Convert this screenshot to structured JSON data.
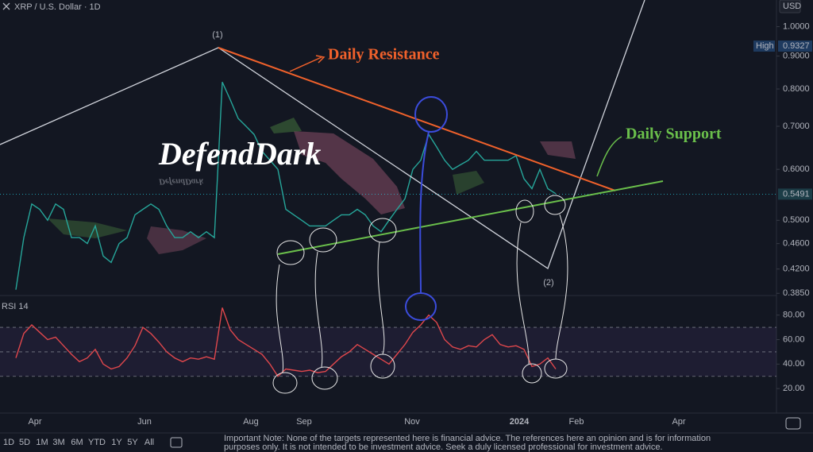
{
  "title": "XRP / U.S. Dollar · 1D",
  "currency": "USD",
  "time_axis": [
    "Apr",
    "Jun",
    "Aug",
    "Sep",
    "Nov",
    "2024",
    "Feb",
    "Apr"
  ],
  "annotations": [
    "(1)",
    "(2)",
    "Daily Resistance",
    "Daily Support",
    "DefendDark"
  ],
  "toolbar": [
    "1D",
    "5D",
    "1M",
    "3M",
    "6M",
    "YTD",
    "1Y",
    "5Y",
    "All"
  ],
  "note": [
    "Important Note: None of the targets represented here is financial advice. The references here an opinion and is for information",
    "purposes only. It is not intended to be investment advice. Seek a duly licensed professional for investment advice."
  ],
  "chart_data": [
    {
      "type": "line",
      "log_scale": true,
      "color": "#26a69a",
      "values": [
        0.39,
        0.47,
        0.53,
        0.52,
        0.5,
        0.53,
        0.52,
        0.47,
        0.47,
        0.46,
        0.49,
        0.44,
        0.43,
        0.46,
        0.47,
        0.51,
        0.52,
        0.53,
        0.52,
        0.49,
        0.47,
        0.47,
        0.48,
        0.47,
        0.48,
        0.47,
        0.82,
        0.77,
        0.72,
        0.7,
        0.68,
        0.64,
        0.62,
        0.6,
        0.52,
        0.51,
        0.5,
        0.49,
        0.49,
        0.49,
        0.5,
        0.51,
        0.51,
        0.52,
        0.51,
        0.49,
        0.48,
        0.5,
        0.52,
        0.54,
        0.6,
        0.62,
        0.68,
        0.65,
        0.62,
        0.6,
        0.61,
        0.62,
        0.64,
        0.62,
        0.62,
        0.62,
        0.62,
        0.63,
        0.58,
        0.56,
        0.6,
        0.56,
        0.55
      ],
      "ylim": [
        0.382,
        1.1
      ],
      "yticks": [
        {
          "value": 1.0,
          "label": "1.0000"
        },
        {
          "value": 0.9,
          "label": "0.9000"
        },
        {
          "value": 0.8,
          "label": "0.8000"
        },
        {
          "value": 0.7,
          "label": "0.7000"
        },
        {
          "value": 0.6,
          "label": "0.6000"
        },
        {
          "value": 0.5,
          "label": "0.5000"
        },
        {
          "value": 0.46,
          "label": "0.4600"
        },
        {
          "value": 0.42,
          "label": "0.4200"
        },
        {
          "value": 0.385,
          "label": "0.3850"
        }
      ],
      "high_label": "High",
      "high": 0.9327,
      "last": 0.5491
    },
    {
      "type": "line",
      "title": "RSI 14",
      "color": "#e0474c",
      "values": [
        45,
        65,
        72,
        66,
        60,
        62,
        55,
        48,
        42,
        45,
        52,
        40,
        36,
        38,
        45,
        55,
        70,
        65,
        58,
        50,
        45,
        42,
        45,
        44,
        46,
        44,
        86,
        68,
        60,
        56,
        52,
        48,
        40,
        30,
        36,
        35,
        34,
        35,
        33,
        34,
        40,
        46,
        50,
        56,
        52,
        48,
        44,
        40,
        48,
        56,
        66,
        72,
        80,
        74,
        60,
        54,
        52,
        55,
        54,
        60,
        64,
        56,
        54,
        55,
        52,
        38,
        40,
        45,
        36
      ],
      "ylim": [
        0,
        96
      ],
      "yticks": [
        {
          "value": 80,
          "label": "80.00"
        },
        {
          "value": 60,
          "label": "60.00"
        },
        {
          "value": 40,
          "label": "40.00"
        },
        {
          "value": 20,
          "label": "20.00"
        }
      ],
      "levels": [
        70,
        50,
        30
      ]
    }
  ]
}
